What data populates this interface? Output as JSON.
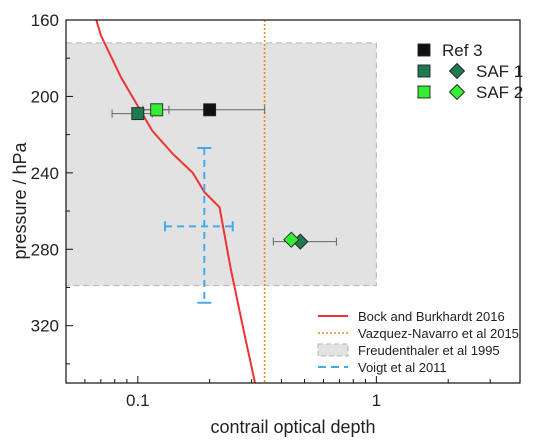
{
  "chart_data": {
    "type": "scatter",
    "xlabel": "contrail optical depth",
    "ylabel": "pressure / hPa",
    "x_scale": "log",
    "xlim": [
      0.05,
      4
    ],
    "ylim": [
      160,
      350
    ],
    "y_inverted": true,
    "y_ticks": [
      160,
      200,
      240,
      280,
      320
    ],
    "y_tick_labels": [
      "160",
      "200",
      "240",
      "280",
      "320"
    ],
    "x_ticks": [
      0.1,
      1
    ],
    "x_tick_labels": [
      "0.1",
      "1"
    ],
    "x_minor_ticks": [
      0.06,
      0.07,
      0.08,
      0.09,
      0.2,
      0.3,
      0.4,
      0.5,
      0.6,
      0.7,
      0.8,
      0.9,
      2,
      3
    ],
    "legend_top": {
      "position": "top-right",
      "entries": [
        {
          "label": "Ref 3",
          "color": "#111111",
          "markers": [
            "square"
          ]
        },
        {
          "label": "SAF 1",
          "color": "#1e7a50",
          "markers": [
            "square",
            "diamond"
          ]
        },
        {
          "label": "SAF 2",
          "color": "#33ee33",
          "markers": [
            "square",
            "diamond"
          ]
        }
      ]
    },
    "legend_bottom": {
      "position": "bottom-right",
      "entries": [
        {
          "label": "Bock and Burkhardt 2016",
          "style": "line"
        },
        {
          "label": "Vazquez-Navarro et al 2015",
          "style": "dotted"
        },
        {
          "label": "Freudenthaler et al 1995",
          "style": "box"
        },
        {
          "label": "Voigt et al 2011",
          "style": "dashed"
        }
      ]
    },
    "series": [
      {
        "name": "Bock and Burkhardt 2016",
        "kind": "line",
        "color": "#ee3333",
        "points": [
          [
            0.067,
            160
          ],
          [
            0.07,
            168
          ],
          [
            0.085,
            190
          ],
          [
            0.1,
            205
          ],
          [
            0.115,
            218
          ],
          [
            0.14,
            230
          ],
          [
            0.17,
            240
          ],
          [
            0.19,
            250
          ],
          [
            0.22,
            258
          ],
          [
            0.245,
            290
          ],
          [
            0.275,
            320
          ],
          [
            0.31,
            350
          ]
        ]
      },
      {
        "name": "Vazquez-Navarro et al 2015",
        "kind": "vline",
        "color": "#f08a20",
        "x": 0.34
      },
      {
        "name": "Freudenthaler et al 1995",
        "kind": "box",
        "color": "#e2e2e2",
        "x_range": [
          0.05,
          1
        ],
        "y_range": [
          172,
          299
        ]
      },
      {
        "name": "Voigt et al 2011",
        "kind": "cross",
        "color": "#44aaee",
        "x": 0.19,
        "y": 268,
        "x_err": [
          0.13,
          0.25
        ],
        "y_err": [
          227,
          308
        ]
      },
      {
        "name": "Ref 3",
        "kind": "markers",
        "color": "#111111",
        "points": [
          {
            "x": 0.2,
            "y": 207,
            "marker": "square",
            "x_err": [
              0.105,
              0.34
            ]
          }
        ]
      },
      {
        "name": "SAF 1",
        "kind": "markers",
        "color": "#1e7a50",
        "points": [
          {
            "x": 0.1,
            "y": 209,
            "marker": "square",
            "x_err": [
              0.078,
              0.115
            ]
          },
          {
            "x": 0.48,
            "y": 276,
            "marker": "diamond",
            "x_err": [
              0.37,
              0.68
            ]
          }
        ]
      },
      {
        "name": "SAF 2",
        "kind": "markers",
        "color": "#33ee33",
        "points": [
          {
            "x": 0.12,
            "y": 207,
            "marker": "square",
            "x_err": [
              0.105,
              0.135
            ]
          },
          {
            "x": 0.44,
            "y": 275,
            "marker": "diamond"
          }
        ]
      }
    ]
  }
}
